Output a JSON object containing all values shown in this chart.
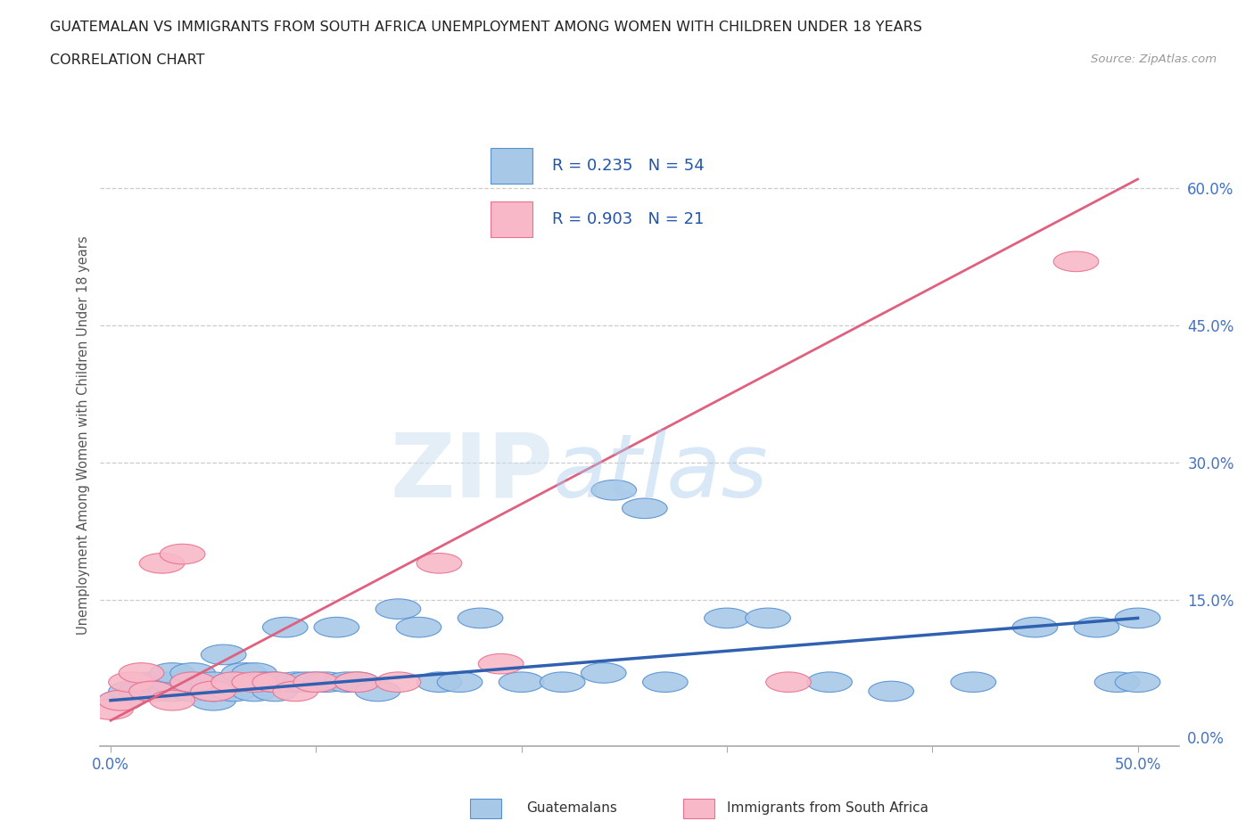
{
  "title_line1": "GUATEMALAN VS IMMIGRANTS FROM SOUTH AFRICA UNEMPLOYMENT AMONG WOMEN WITH CHILDREN UNDER 18 YEARS",
  "title_line2": "CORRELATION CHART",
  "source_text": "Source: ZipAtlas.com",
  "xlabel_ticks": [
    "0.0%",
    "",
    "",
    "",
    "",
    "50.0%"
  ],
  "ylabel_ticks": [
    "0.0%",
    "15.0%",
    "30.0%",
    "45.0%",
    "60.0%"
  ],
  "xlim": [
    -0.005,
    0.52
  ],
  "ylim": [
    -0.01,
    0.67
  ],
  "watermark_zip": "ZIP",
  "watermark_atlas": "atlas",
  "legend_blue_R": "0.235",
  "legend_blue_N": "54",
  "legend_pink_R": "0.903",
  "legend_pink_N": "21",
  "blue_fill": "#A8C8E8",
  "pink_fill": "#F8B8C8",
  "blue_edge": "#5590D0",
  "pink_edge": "#E87090",
  "blue_line_color": "#3060B0",
  "pink_line_color": "#E06080",
  "guatemalans_x": [
    0.005,
    0.01,
    0.015,
    0.02,
    0.02,
    0.025,
    0.03,
    0.03,
    0.03,
    0.04,
    0.04,
    0.04,
    0.05,
    0.05,
    0.05,
    0.055,
    0.06,
    0.06,
    0.065,
    0.07,
    0.07,
    0.075,
    0.08,
    0.08,
    0.085,
    0.09,
    0.095,
    0.1,
    0.105,
    0.11,
    0.115,
    0.12,
    0.13,
    0.14,
    0.15,
    0.16,
    0.17,
    0.18,
    0.2,
    0.22,
    0.24,
    0.245,
    0.26,
    0.27,
    0.3,
    0.32,
    0.35,
    0.38,
    0.42,
    0.45,
    0.48,
    0.49,
    0.5,
    0.5
  ],
  "guatemalans_y": [
    0.04,
    0.05,
    0.05,
    0.05,
    0.06,
    0.06,
    0.05,
    0.06,
    0.07,
    0.05,
    0.06,
    0.07,
    0.04,
    0.05,
    0.06,
    0.09,
    0.05,
    0.06,
    0.07,
    0.05,
    0.07,
    0.06,
    0.05,
    0.06,
    0.12,
    0.06,
    0.06,
    0.06,
    0.06,
    0.12,
    0.06,
    0.06,
    0.05,
    0.14,
    0.12,
    0.06,
    0.06,
    0.13,
    0.06,
    0.06,
    0.07,
    0.27,
    0.25,
    0.06,
    0.13,
    0.13,
    0.06,
    0.05,
    0.06,
    0.12,
    0.12,
    0.06,
    0.06,
    0.13
  ],
  "south_africa_x": [
    0.0,
    0.005,
    0.01,
    0.015,
    0.02,
    0.025,
    0.03,
    0.035,
    0.04,
    0.05,
    0.06,
    0.07,
    0.08,
    0.09,
    0.1,
    0.12,
    0.14,
    0.16,
    0.19,
    0.33,
    0.47
  ],
  "south_africa_y": [
    0.03,
    0.04,
    0.06,
    0.07,
    0.05,
    0.19,
    0.04,
    0.2,
    0.06,
    0.05,
    0.06,
    0.06,
    0.06,
    0.05,
    0.06,
    0.06,
    0.06,
    0.19,
    0.08,
    0.06,
    0.52
  ],
  "blue_trend_x": [
    0.0,
    0.5
  ],
  "blue_trend_y": [
    0.04,
    0.13
  ],
  "pink_trend_x": [
    0.0,
    0.5
  ],
  "pink_trend_y": [
    0.018,
    0.61
  ],
  "ylabel": "Unemployment Among Women with Children Under 18 years",
  "legend_label_blue": "Guatemalans",
  "legend_label_pink": "Immigrants from South Africa"
}
